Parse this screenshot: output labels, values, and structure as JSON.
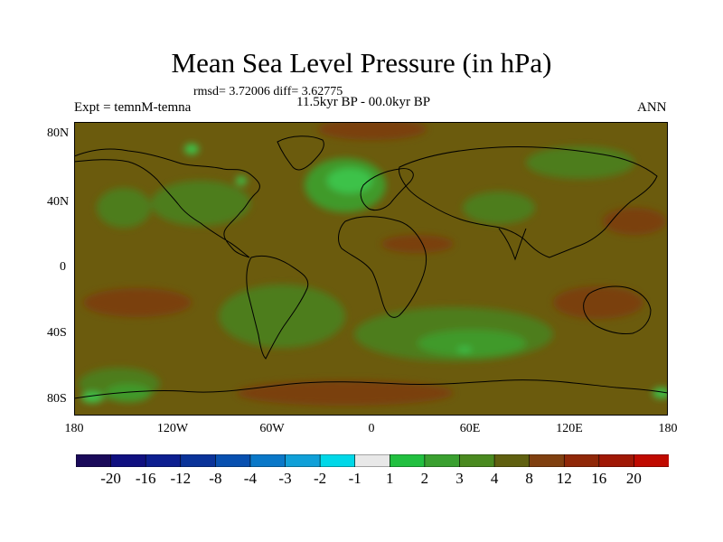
{
  "title": "Mean Sea Level Pressure (in hPa)",
  "stats": "rmsd= 3.72006 diff= 3.62775",
  "expt": "Expt = temnM-temna",
  "period": "11.5kyr BP - 00.0kyr BP",
  "season": "ANN",
  "lat_labels": [
    "80N",
    "40N",
    "0",
    "40S",
    "80S"
  ],
  "lon_labels": [
    "180",
    "120W",
    "60W",
    "0",
    "60E",
    "120E",
    "180"
  ],
  "colorbar": {
    "labels": [
      "-20",
      "-16",
      "-12",
      "-8",
      "-4",
      "-3",
      "-2",
      "-1",
      "1",
      "2",
      "3",
      "4",
      "8",
      "12",
      "16",
      "20"
    ],
    "colors": [
      "#1a0a5a",
      "#101080",
      "#0d1f90",
      "#0a3399",
      "#0850b0",
      "#0a78c8",
      "#10a0d8",
      "#00d8e8",
      "#e8e8e8",
      "#22c040",
      "#3aa030",
      "#4a8a20",
      "#606010",
      "#804010",
      "#902808",
      "#a01805",
      "#c00a00"
    ]
  },
  "map_colors": {
    "background": "#6b5b0d",
    "green_dark": "#4e7d1c",
    "green_mid": "#3f9a2a",
    "green_light": "#3ec24a",
    "brown": "#7a3f0c",
    "coast": "#000000"
  }
}
